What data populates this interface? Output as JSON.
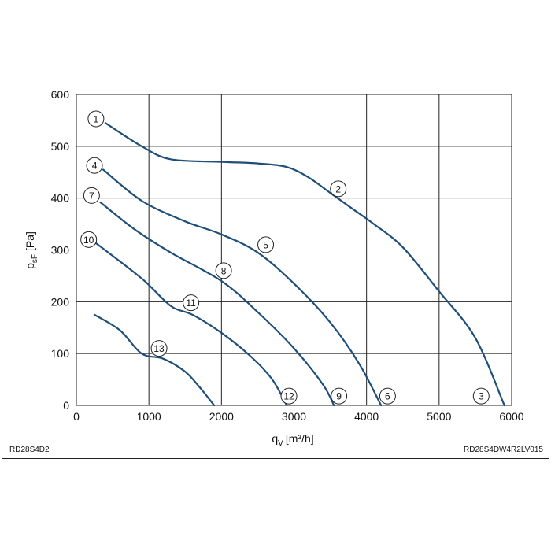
{
  "chart_data": {
    "type": "line",
    "xlabel": {
      "main": "q",
      "sub": "V",
      "unit": "[m³/h]"
    },
    "ylabel": {
      "main": "p",
      "sub": "sF",
      "unit": "[Pa]"
    },
    "xlim": [
      0,
      6000
    ],
    "ylim": [
      0,
      600
    ],
    "x_ticks": [
      "0",
      "1000",
      "2000",
      "3000",
      "4000",
      "5000",
      "6000"
    ],
    "y_ticks": [
      "0",
      "100",
      "200",
      "300",
      "400",
      "500",
      "600"
    ],
    "grid": true,
    "line_color": "#1f4e79",
    "footer_left": "RD28S4D2",
    "footer_right": "RD28S4DW4R2LV015",
    "series": [
      {
        "points": [
          [
            400,
            545
          ],
          [
            900,
            500
          ],
          [
            1300,
            475
          ],
          [
            2000,
            470
          ],
          [
            2500,
            467
          ],
          [
            2900,
            460
          ],
          [
            3200,
            440
          ],
          [
            3500,
            410
          ],
          [
            3800,
            380
          ],
          [
            4100,
            350
          ],
          [
            4500,
            305
          ],
          [
            5000,
            220
          ],
          [
            5500,
            130
          ],
          [
            5900,
            0
          ]
        ]
      },
      {
        "points": [
          [
            370,
            455
          ],
          [
            900,
            395
          ],
          [
            1500,
            355
          ],
          [
            2000,
            330
          ],
          [
            2500,
            295
          ],
          [
            3000,
            235
          ],
          [
            3500,
            160
          ],
          [
            3900,
            80
          ],
          [
            4200,
            0
          ]
        ]
      },
      {
        "points": [
          [
            330,
            392
          ],
          [
            800,
            340
          ],
          [
            1300,
            295
          ],
          [
            2000,
            240
          ],
          [
            2500,
            180
          ],
          [
            3000,
            110
          ],
          [
            3400,
            40
          ],
          [
            3550,
            0
          ]
        ]
      },
      {
        "points": [
          [
            270,
            313
          ],
          [
            900,
            245
          ],
          [
            1300,
            192
          ],
          [
            1600,
            175
          ],
          [
            2000,
            140
          ],
          [
            2400,
            95
          ],
          [
            2700,
            50
          ],
          [
            2900,
            0
          ]
        ]
      },
      {
        "points": [
          [
            250,
            175
          ],
          [
            600,
            145
          ],
          [
            900,
            100
          ],
          [
            1200,
            90
          ],
          [
            1500,
            65
          ],
          [
            1700,
            35
          ],
          [
            1900,
            0
          ]
        ]
      }
    ],
    "markers": [
      {
        "label": "1",
        "x": 270,
        "y": 553
      },
      {
        "label": "2",
        "x": 3610,
        "y": 418
      },
      {
        "label": "3",
        "x": 5580,
        "y": 18
      },
      {
        "label": "4",
        "x": 250,
        "y": 463
      },
      {
        "label": "5",
        "x": 2610,
        "y": 310
      },
      {
        "label": "6",
        "x": 4290,
        "y": 18
      },
      {
        "label": "7",
        "x": 210,
        "y": 405
      },
      {
        "label": "8",
        "x": 2030,
        "y": 260
      },
      {
        "label": "9",
        "x": 3620,
        "y": 18
      },
      {
        "label": "10",
        "x": 170,
        "y": 320
      },
      {
        "label": "11",
        "x": 1580,
        "y": 198
      },
      {
        "label": "12",
        "x": 2930,
        "y": 18
      },
      {
        "label": "13",
        "x": 1140,
        "y": 110
      }
    ]
  }
}
